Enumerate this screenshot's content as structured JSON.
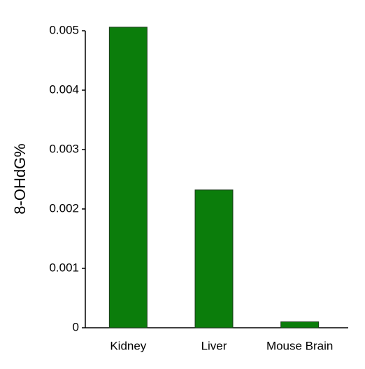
{
  "chart_data": {
    "type": "bar",
    "y_label": "8-OHdG%",
    "categories": [
      "Kidney",
      "Liver",
      "Mouse Brain"
    ],
    "values": [
      0.00506,
      0.00232,
      0.0001
    ],
    "color": "#0b7d0b",
    "ylim": [
      0,
      0.005
    ],
    "yticks": [
      0,
      0.001,
      0.002,
      0.003,
      0.004,
      0.005
    ]
  }
}
